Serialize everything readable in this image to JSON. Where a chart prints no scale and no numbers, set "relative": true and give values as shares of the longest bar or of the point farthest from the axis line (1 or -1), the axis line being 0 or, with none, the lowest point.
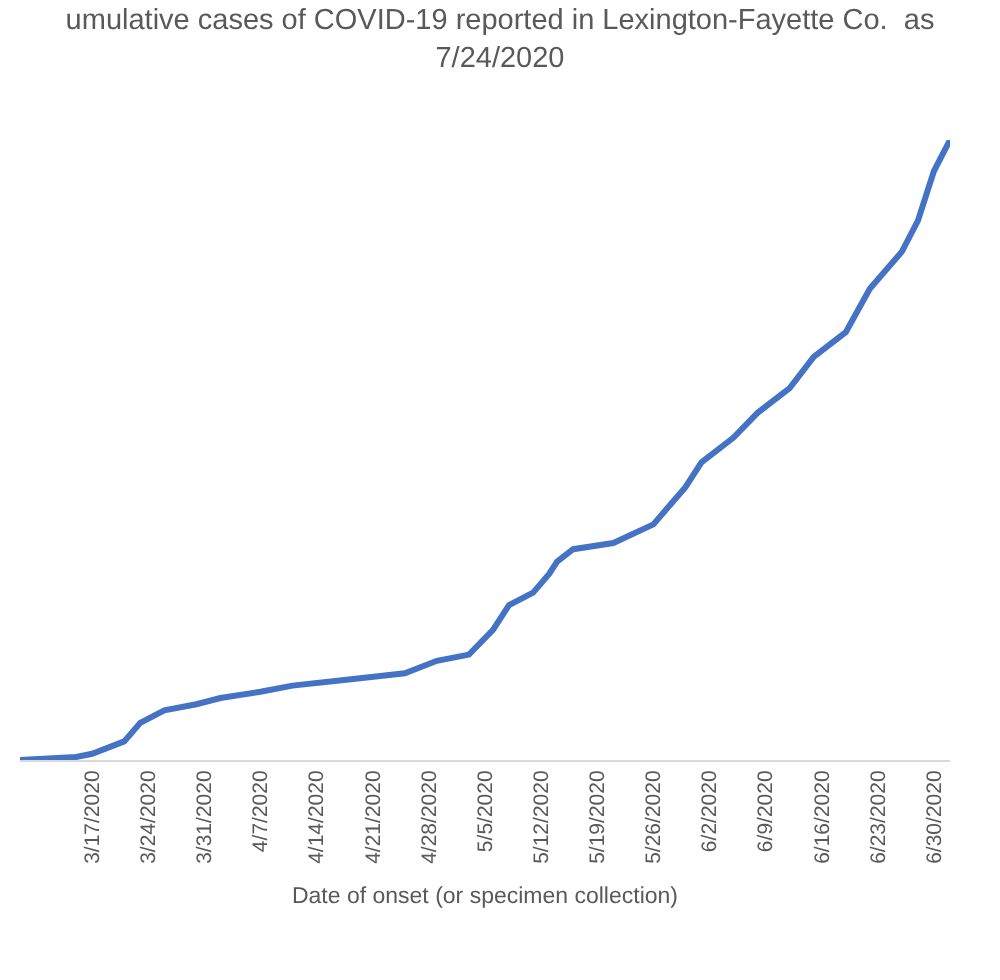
{
  "chart_data": {
    "type": "line",
    "title": "umulative cases of COVID-19 reported in Lexington-Fayette Co.  as\n7/24/2020",
    "xlabel": "Date of onset (or specimen collection)",
    "relative": true,
    "grid": false,
    "marker": "none",
    "line_style": "solid",
    "x": [
      "2020-03-08",
      "2020-03-15",
      "2020-03-17",
      "2020-03-21",
      "2020-03-23",
      "2020-03-26",
      "2020-03-30",
      "2020-04-02",
      "2020-04-07",
      "2020-04-11",
      "2020-04-18",
      "2020-04-25",
      "2020-04-29",
      "2020-05-03",
      "2020-05-06",
      "2020-05-08",
      "2020-05-11",
      "2020-05-13",
      "2020-05-14",
      "2020-05-16",
      "2020-05-21",
      "2020-05-26",
      "2020-05-28",
      "2020-05-30",
      "2020-06-01",
      "2020-06-05",
      "2020-06-08",
      "2020-06-12",
      "2020-06-15",
      "2020-06-19",
      "2020-06-22",
      "2020-06-26",
      "2020-06-28",
      "2020-06-30",
      "2020-07-02"
    ],
    "series": [
      {
        "color": "#4472c4",
        "values": [
          0,
          0.005,
          0.01,
          0.03,
          0.06,
          0.08,
          0.09,
          0.1,
          0.11,
          0.12,
          0.13,
          0.14,
          0.16,
          0.17,
          0.21,
          0.25,
          0.27,
          0.3,
          0.32,
          0.34,
          0.35,
          0.38,
          0.41,
          0.44,
          0.48,
          0.52,
          0.56,
          0.6,
          0.65,
          0.69,
          0.76,
          0.82,
          0.87,
          0.95,
          1
        ]
      }
    ],
    "xlim": [
      "2020-03-08",
      "2020-07-02"
    ],
    "xticks": [
      {
        "value": "2020-03-17",
        "label": "3/17/2020"
      },
      {
        "value": "2020-03-24",
        "label": "3/24/2020"
      },
      {
        "value": "2020-03-31",
        "label": "3/31/2020"
      },
      {
        "value": "2020-04-07",
        "label": "4/7/2020"
      },
      {
        "value": "2020-04-14",
        "label": "4/14/2020"
      },
      {
        "value": "2020-04-21",
        "label": "4/21/2020"
      },
      {
        "value": "2020-04-28",
        "label": "4/28/2020"
      },
      {
        "value": "2020-05-05",
        "label": "5/5/2020"
      },
      {
        "value": "2020-05-12",
        "label": "5/12/2020"
      },
      {
        "value": "2020-05-19",
        "label": "5/19/2020"
      },
      {
        "value": "2020-05-26",
        "label": "5/26/2020"
      },
      {
        "value": "2020-06-02",
        "label": "6/2/2020"
      },
      {
        "value": "2020-06-09",
        "label": "6/9/2020"
      },
      {
        "value": "2020-06-16",
        "label": "6/16/2020"
      },
      {
        "value": "2020-06-23",
        "label": "6/23/2020"
      },
      {
        "value": "2020-06-30",
        "label": "6/30/2020"
      }
    ]
  }
}
